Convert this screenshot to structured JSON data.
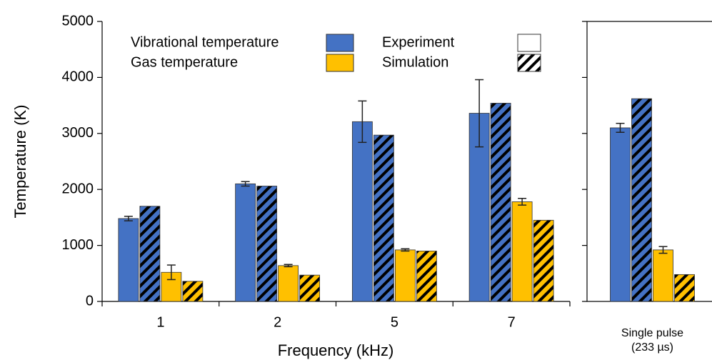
{
  "chart_data": [
    {
      "type": "bar",
      "y_label": "Temperature (K)",
      "x_label": "Frequency (kHz)",
      "categories": [
        "1",
        "2",
        "5",
        "7"
      ],
      "ylim": [
        0,
        5000
      ],
      "yticks": [
        0,
        1000,
        2000,
        3000,
        4000,
        5000
      ],
      "legend": {
        "colors": [
          {
            "name": "Vibrational temperature",
            "color": "#4472c4"
          },
          {
            "name": "Gas temperature",
            "color": "#ffc000"
          }
        ],
        "patterns": [
          {
            "name": "Experiment",
            "pattern": "solid"
          },
          {
            "name": "Simulation",
            "pattern": "hatch"
          }
        ]
      },
      "series": [
        {
          "color": "#4472c4",
          "pattern": "solid",
          "values": [
            1480,
            2100,
            3210,
            3360
          ],
          "errors": [
            40,
            40,
            370,
            600
          ]
        },
        {
          "color": "#4472c4",
          "pattern": "hatch",
          "values": [
            1700,
            2060,
            2970,
            3540
          ]
        },
        {
          "color": "#ffc000",
          "pattern": "solid",
          "values": [
            520,
            640,
            920,
            1780
          ],
          "errors": [
            130,
            20,
            20,
            60
          ]
        },
        {
          "color": "#ffc000",
          "pattern": "hatch",
          "values": [
            360,
            470,
            900,
            1450
          ]
        }
      ]
    },
    {
      "type": "bar",
      "categories": [
        [
          "Single pulse",
          "(233 µs)"
        ]
      ],
      "ylim": [
        0,
        5000
      ],
      "yticks": [
        0,
        1000,
        2000,
        3000,
        4000,
        5000
      ],
      "series": [
        {
          "color": "#4472c4",
          "pattern": "solid",
          "values": [
            3100
          ],
          "errors": [
            80
          ]
        },
        {
          "color": "#4472c4",
          "pattern": "hatch",
          "values": [
            3620
          ]
        },
        {
          "color": "#ffc000",
          "pattern": "solid",
          "values": [
            920
          ],
          "errors": [
            60
          ]
        },
        {
          "color": "#ffc000",
          "pattern": "hatch",
          "values": [
            480
          ]
        }
      ]
    }
  ]
}
